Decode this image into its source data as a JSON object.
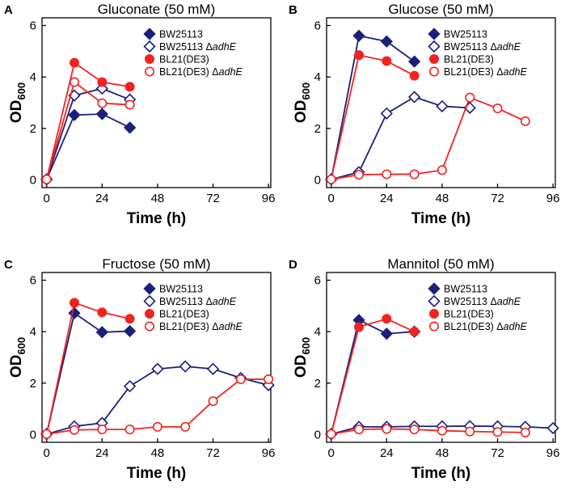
{
  "colors": {
    "navy": "#1a1f7a",
    "red": "#f2231f",
    "axis": "#000000"
  },
  "chart_data": [
    {
      "type": "line",
      "panel": "A",
      "title": "Gluconate (50 mM)",
      "xlabel": "Time (h)",
      "ylabel_main": "OD",
      "ylabel_sub": "600",
      "xlim": [
        -2,
        97
      ],
      "ylim": [
        -0.3,
        6.3
      ],
      "xticks": [
        "0",
        "24",
        "48",
        "72",
        "96"
      ],
      "yticks": [
        "0",
        "2",
        "4",
        "6"
      ],
      "legend": "top-right",
      "series": [
        {
          "name": "BW25113",
          "suffix": "",
          "marker": "diamond",
          "filled": true,
          "color": "navy",
          "x": [
            0,
            12,
            24,
            36
          ],
          "y": [
            0.02,
            2.52,
            2.56,
            2.03
          ]
        },
        {
          "name": "BW25113 Δ",
          "suffix": "adhE",
          "marker": "diamond",
          "filled": false,
          "color": "navy",
          "x": [
            0,
            12,
            24,
            36
          ],
          "y": [
            0.02,
            3.28,
            3.55,
            3.12
          ]
        },
        {
          "name": "BL21(DE3)",
          "suffix": "",
          "marker": "circle",
          "filled": true,
          "color": "red",
          "x": [
            0,
            12,
            24,
            36
          ],
          "y": [
            0.02,
            4.55,
            3.8,
            3.62
          ]
        },
        {
          "name": "BL21(DE3) Δ",
          "suffix": "adhE",
          "marker": "circle",
          "filled": false,
          "color": "red",
          "x": [
            0,
            12,
            24,
            36
          ],
          "y": [
            0.02,
            3.8,
            2.98,
            2.92
          ]
        }
      ]
    },
    {
      "type": "line",
      "panel": "B",
      "title": "Glucose (50 mM)",
      "xlabel": "Time (h)",
      "ylabel_main": "OD",
      "ylabel_sub": "600",
      "xlim": [
        -2,
        97
      ],
      "ylim": [
        -0.3,
        6.3
      ],
      "xticks": [
        "0",
        "24",
        "48",
        "72",
        "96"
      ],
      "yticks": [
        "0",
        "2",
        "4",
        "6"
      ],
      "legend": "top-right",
      "series": [
        {
          "name": "BW25113",
          "suffix": "",
          "marker": "diamond",
          "filled": true,
          "color": "navy",
          "x": [
            0,
            12,
            24,
            36
          ],
          "y": [
            0.02,
            5.6,
            5.38,
            4.6
          ]
        },
        {
          "name": "BW25113 Δ",
          "suffix": "adhE",
          "marker": "diamond",
          "filled": false,
          "color": "navy",
          "x": [
            0,
            12,
            24,
            36,
            48,
            60
          ],
          "y": [
            0.02,
            0.3,
            2.58,
            3.22,
            2.86,
            2.8
          ]
        },
        {
          "name": "BL21(DE3)",
          "suffix": "",
          "marker": "circle",
          "filled": true,
          "color": "red",
          "x": [
            0,
            12,
            24,
            36
          ],
          "y": [
            0.02,
            4.85,
            4.62,
            4.05
          ]
        },
        {
          "name": "BL21(DE3) Δ",
          "suffix": "adhE",
          "marker": "circle",
          "filled": false,
          "color": "red",
          "x": [
            0,
            12,
            24,
            36,
            48,
            60,
            72,
            84
          ],
          "y": [
            0.02,
            0.2,
            0.22,
            0.22,
            0.38,
            3.2,
            2.78,
            2.28
          ]
        }
      ]
    },
    {
      "type": "line",
      "panel": "C",
      "title": "Fructose (50 mM)",
      "xlabel": "Time (h)",
      "ylabel_main": "OD",
      "ylabel_sub": "600",
      "xlim": [
        -2,
        97
      ],
      "ylim": [
        -0.3,
        6.3
      ],
      "xticks": [
        "0",
        "24",
        "48",
        "72",
        "96"
      ],
      "yticks": [
        "0",
        "2",
        "4",
        "6"
      ],
      "legend": "top-right",
      "series": [
        {
          "name": "BW25113",
          "suffix": "",
          "marker": "diamond",
          "filled": true,
          "color": "navy",
          "x": [
            0,
            12,
            24,
            36
          ],
          "y": [
            0.02,
            4.72,
            3.98,
            4.02
          ]
        },
        {
          "name": "BW25113 Δ",
          "suffix": "adhE",
          "marker": "diamond",
          "filled": false,
          "color": "navy",
          "x": [
            0,
            12,
            24,
            36,
            48,
            60,
            72,
            84,
            96
          ],
          "y": [
            0.02,
            0.32,
            0.45,
            1.88,
            2.55,
            2.65,
            2.55,
            2.2,
            1.92
          ]
        },
        {
          "name": "BL21(DE3)",
          "suffix": "",
          "marker": "circle",
          "filled": true,
          "color": "red",
          "x": [
            0,
            12,
            24,
            36
          ],
          "y": [
            0.02,
            5.12,
            4.75,
            4.5
          ]
        },
        {
          "name": "BL21(DE3) Δ",
          "suffix": "adhE",
          "marker": "circle",
          "filled": false,
          "color": "red",
          "x": [
            0,
            12,
            24,
            36,
            48,
            60,
            72,
            84,
            96
          ],
          "y": [
            0.02,
            0.18,
            0.2,
            0.2,
            0.3,
            0.3,
            1.3,
            2.15,
            2.15
          ]
        }
      ]
    },
    {
      "type": "line",
      "panel": "D",
      "title": "Mannitol (50 mM)",
      "xlabel": "Time (h)",
      "ylabel_main": "OD",
      "ylabel_sub": "600",
      "xlim": [
        -2,
        97
      ],
      "ylim": [
        -0.3,
        6.3
      ],
      "xticks": [
        "0",
        "24",
        "48",
        "72",
        "96"
      ],
      "yticks": [
        "0",
        "2",
        "4",
        "6"
      ],
      "legend": "top-right",
      "series": [
        {
          "name": "BW25113",
          "suffix": "",
          "marker": "diamond",
          "filled": true,
          "color": "navy",
          "x": [
            0,
            12,
            24,
            36
          ],
          "y": [
            0.02,
            4.45,
            3.92,
            4.0
          ]
        },
        {
          "name": "BW25113 Δ",
          "suffix": "adhE",
          "marker": "diamond",
          "filled": false,
          "color": "navy",
          "x": [
            0,
            12,
            24,
            36,
            48,
            60,
            72,
            84,
            96
          ],
          "y": [
            0.02,
            0.3,
            0.3,
            0.32,
            0.32,
            0.33,
            0.32,
            0.3,
            0.25
          ]
        },
        {
          "name": "BL21(DE3)",
          "suffix": "",
          "marker": "circle",
          "filled": true,
          "color": "red",
          "x": [
            0,
            12,
            24,
            36
          ],
          "y": [
            0.02,
            4.18,
            4.5,
            4.0
          ]
        },
        {
          "name": "BL21(DE3) Δ",
          "suffix": "adhE",
          "marker": "circle",
          "filled": false,
          "color": "red",
          "x": [
            0,
            12,
            24,
            36,
            48,
            60,
            72,
            84
          ],
          "y": [
            0.02,
            0.2,
            0.22,
            0.2,
            0.15,
            0.12,
            0.1,
            0.08
          ]
        }
      ]
    }
  ]
}
